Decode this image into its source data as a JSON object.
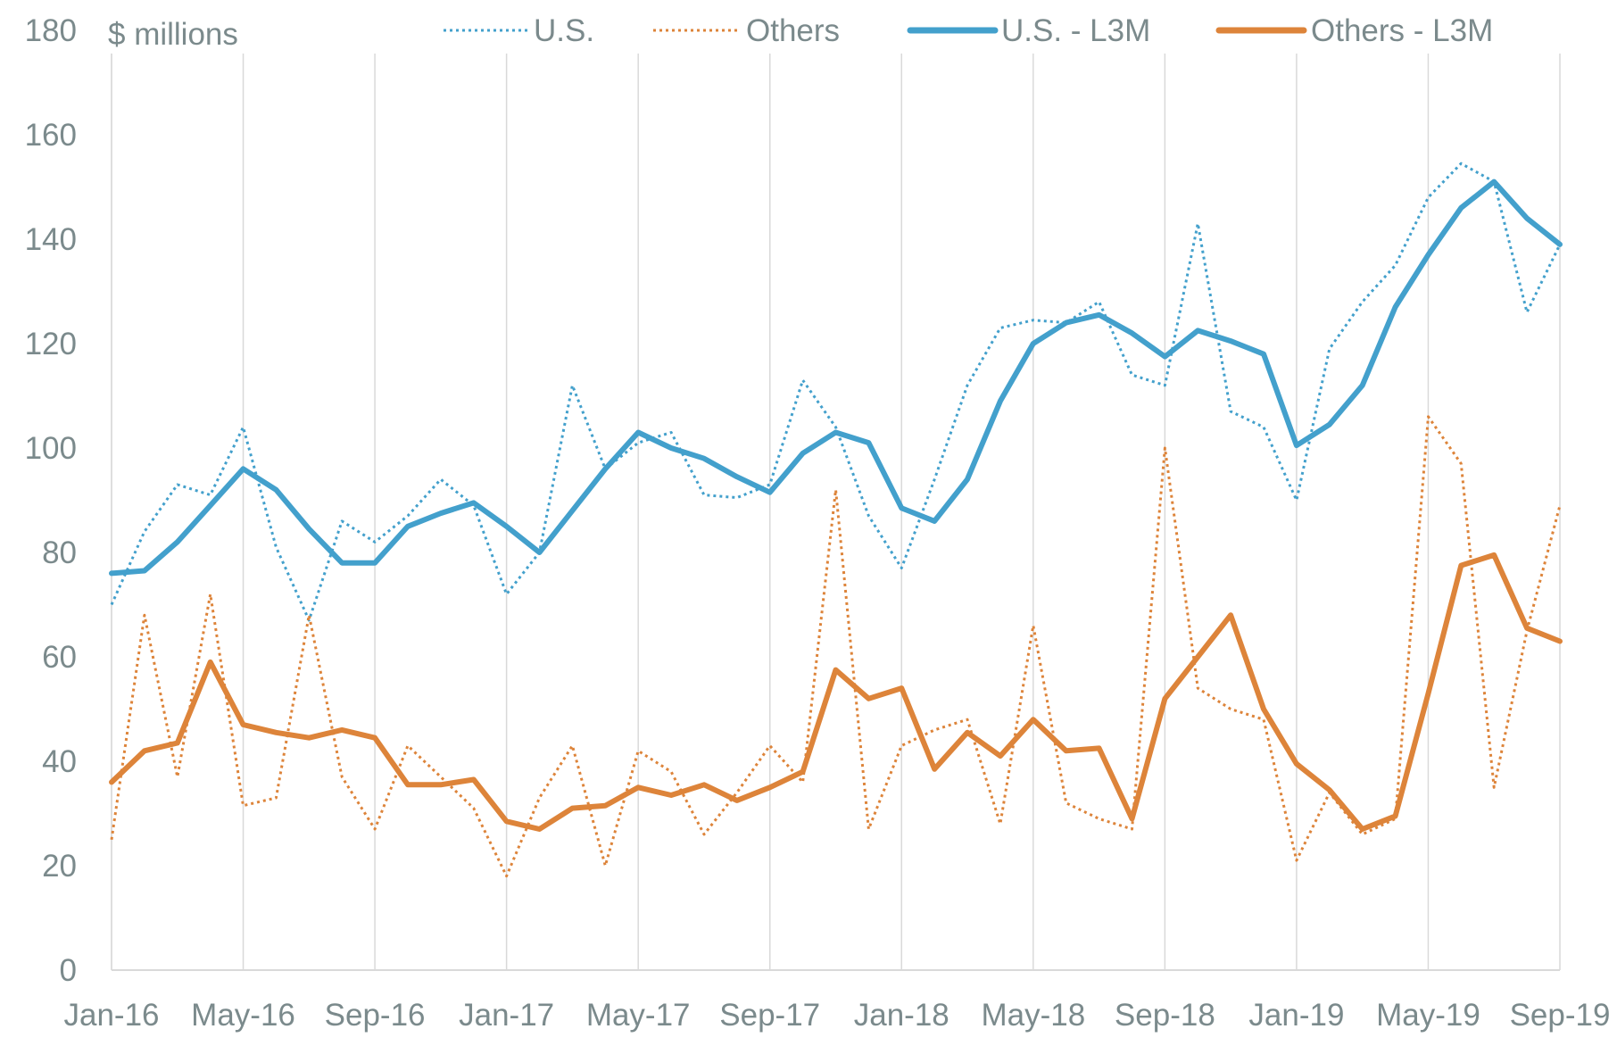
{
  "chart_data": {
    "type": "line",
    "title": "",
    "ylabel": "$ millions",
    "xlabel": "",
    "ylim": [
      0,
      180
    ],
    "yticks": [
      "0",
      "20",
      "40",
      "60",
      "80",
      "100",
      "120",
      "140",
      "160",
      "180"
    ],
    "ytick_values": [
      0,
      20,
      40,
      60,
      80,
      100,
      120,
      140,
      160,
      180
    ],
    "xtick_labels": [
      "Jan-16",
      "May-16",
      "Sep-16",
      "Jan-17",
      "May-17",
      "Sep-17",
      "Jan-18",
      "May-18",
      "Sep-18",
      "Jan-19",
      "May-19",
      "Sep-19"
    ],
    "xtick_every": 4,
    "n_points": 45,
    "grid": "vertical",
    "legend_position": "top",
    "colors": {
      "us": "#43a0cc",
      "others": "#dd843a",
      "grid": "#d9d9d9",
      "text": "#7b8a8c"
    },
    "series": [
      {
        "name": "U.S.",
        "style": "dotted",
        "color": "#43a0cc",
        "values": [
          70,
          84,
          93,
          91,
          104,
          81,
          67,
          86,
          82,
          87,
          94,
          89,
          72,
          80,
          112,
          96,
          101,
          103,
          91,
          90.5,
          93,
          113,
          104,
          87,
          77,
          94,
          112,
          123,
          124.5,
          124,
          128,
          114,
          112,
          143,
          107,
          104,
          90,
          119,
          128,
          135,
          148,
          154.5,
          151,
          126,
          139
        ]
      },
      {
        "name": "Others",
        "style": "dotted",
        "color": "#dd843a",
        "values": [
          25,
          68,
          37,
          72,
          31.5,
          33,
          68,
          37,
          27,
          43,
          37,
          31,
          18,
          33,
          43,
          20,
          42,
          38,
          26,
          34,
          43,
          36,
          92,
          27,
          43,
          46,
          48,
          28,
          66,
          32,
          29,
          27,
          100,
          54,
          50,
          48,
          21,
          34,
          26,
          29,
          106,
          97,
          35,
          65,
          89
        ]
      },
      {
        "name": "U.S. - L3M",
        "style": "solid",
        "color": "#43a0cc",
        "values": [
          76,
          76.5,
          82,
          89,
          96,
          92,
          84.5,
          78,
          78,
          85,
          87.5,
          89.5,
          85,
          80,
          88,
          96,
          103,
          100,
          98,
          94.5,
          91.5,
          99,
          103,
          101,
          88.5,
          86,
          94,
          109,
          120,
          124,
          125.5,
          122,
          117.5,
          122.5,
          120.5,
          118,
          100.5,
          104.5,
          112,
          127,
          137,
          146,
          151,
          144,
          139
        ]
      },
      {
        "name": "Others - L3M",
        "style": "solid",
        "color": "#dd843a",
        "values": [
          36,
          42,
          43.5,
          59,
          47,
          45.5,
          44.5,
          46,
          44.5,
          35.5,
          35.5,
          36.5,
          28.5,
          27,
          31,
          31.5,
          35,
          33.5,
          35.5,
          32.5,
          35,
          38,
          57.5,
          52,
          54,
          38.5,
          45.5,
          41,
          48,
          42,
          42.5,
          29,
          52,
          60,
          68,
          50,
          39.5,
          34.5,
          27,
          29.5,
          53,
          77.5,
          79.5,
          65.5,
          63
        ]
      }
    ]
  }
}
